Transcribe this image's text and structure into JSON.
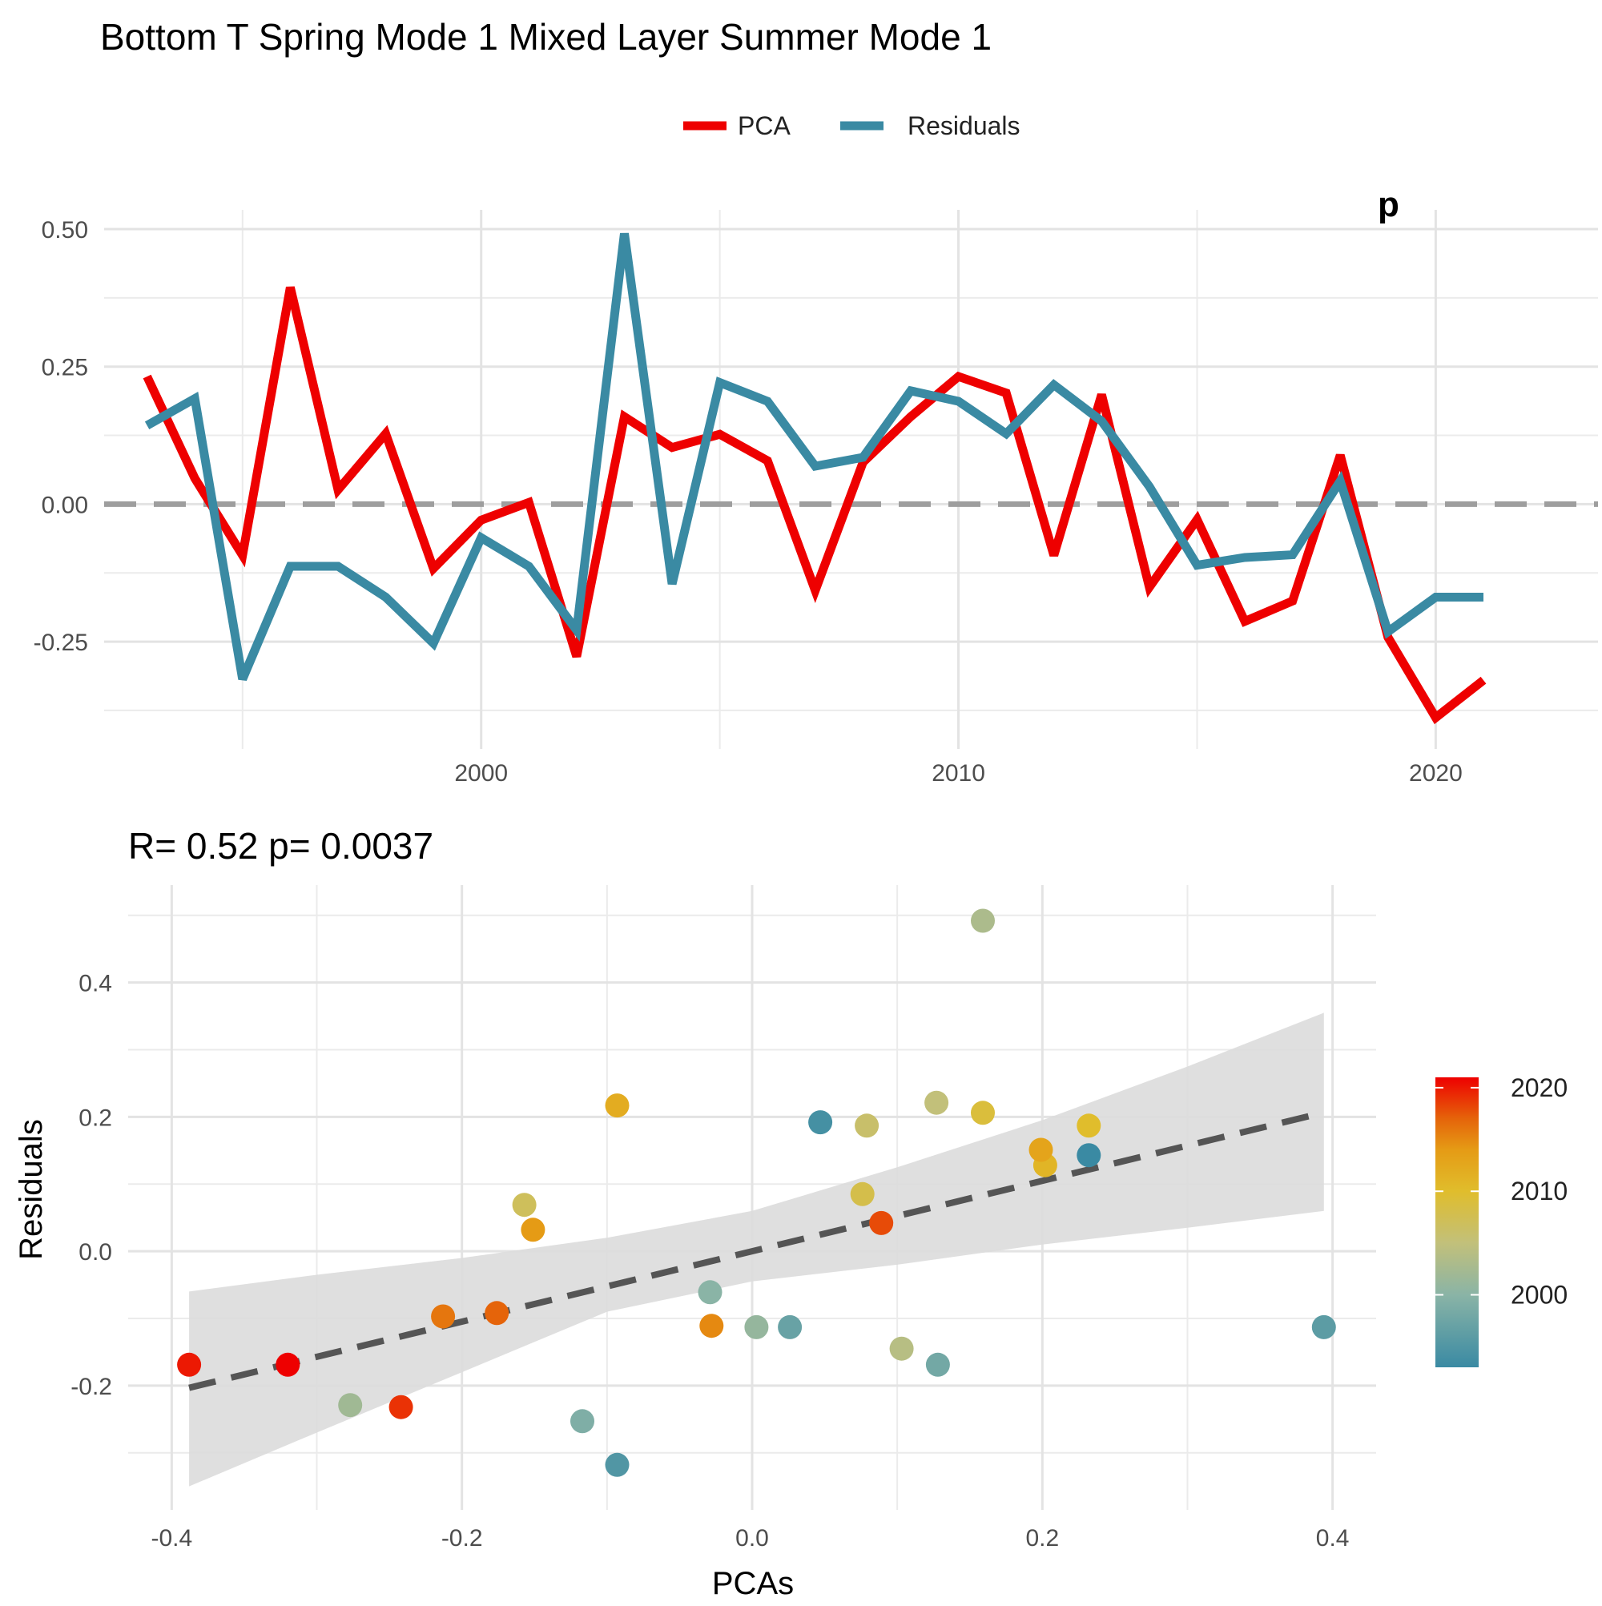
{
  "title": "Bottom T Spring Mode 1 Mixed Layer Summer Mode 1",
  "legend": {
    "placement": "top-center",
    "entries": [
      {
        "name": "PCA",
        "color": "#EE0000"
      },
      {
        "name": "Residuals",
        "color": "#3A8AA3"
      }
    ]
  },
  "chart_data": [
    {
      "type": "line",
      "title": "",
      "xlabel": "",
      "ylabel": "",
      "corner_label": "p",
      "xlim": [
        1992.1,
        2023.4
      ],
      "ylim": [
        -0.445,
        0.535
      ],
      "x_ticks": [
        2000,
        2010,
        2020
      ],
      "y_ticks": [
        0.5,
        0.25,
        0.0,
        -0.25
      ],
      "y_tick_labels": [
        "0.50",
        "0.25",
        "0.00",
        "-0.25"
      ],
      "grid": true,
      "reference_line": 0,
      "x": [
        1993,
        1994,
        1995,
        1996,
        1997,
        1998,
        1999,
        2000,
        2001,
        2002,
        2003,
        2004,
        2005,
        2006,
        2007,
        2008,
        2009,
        2010,
        2011,
        2012,
        2013,
        2014,
        2015,
        2016,
        2017,
        2018,
        2019,
        2020,
        2021
      ],
      "series": [
        {
          "name": "PCA",
          "color": "#EE0000",
          "values": [
            0.232,
            0.047,
            -0.093,
            0.394,
            0.026,
            0.128,
            -0.117,
            -0.029,
            0.003,
            -0.277,
            0.159,
            0.103,
            0.127,
            0.079,
            -0.157,
            0.076,
            0.159,
            0.232,
            0.202,
            -0.093,
            0.199,
            -0.151,
            -0.028,
            -0.213,
            -0.176,
            0.089,
            -0.242,
            -0.388,
            -0.32
          ]
        },
        {
          "name": "Residuals",
          "color": "#3A8AA3",
          "values": [
            0.143,
            0.192,
            -0.318,
            -0.113,
            -0.113,
            -0.169,
            -0.253,
            -0.061,
            -0.113,
            -0.229,
            0.492,
            -0.145,
            0.221,
            0.187,
            0.069,
            0.085,
            0.206,
            0.187,
            0.128,
            0.217,
            0.151,
            0.032,
            -0.111,
            -0.097,
            -0.092,
            0.042,
            -0.232,
            -0.169,
            -0.169
          ]
        }
      ]
    },
    {
      "type": "scatter",
      "title": "R= 0.52  p= 0.0037",
      "xlabel": "PCAs",
      "ylabel": "Residuals",
      "xlim": [
        -0.43,
        0.43
      ],
      "ylim": [
        -0.385,
        0.545
      ],
      "x_ticks": [
        -0.4,
        -0.2,
        0.0,
        0.2,
        0.4
      ],
      "x_tick_labels": [
        "-0.4",
        "-0.2",
        "0.0",
        "0.2",
        "0.4"
      ],
      "y_ticks": [
        0.4,
        0.2,
        0.0,
        -0.2
      ],
      "y_tick_labels": [
        "0.4",
        "0.2",
        "0.0",
        "-0.2"
      ],
      "grid": true,
      "fit": {
        "intercept": 0.0,
        "slope": 0.524,
        "x_range": [
          -0.388,
          0.394
        ],
        "style": "dashed",
        "color": "#555555"
      },
      "confidence_band": {
        "x": [
          -0.388,
          -0.3,
          -0.2,
          -0.1,
          0.0,
          0.1,
          0.2,
          0.3,
          0.394
        ],
        "lower": [
          -0.35,
          -0.27,
          -0.18,
          -0.09,
          -0.045,
          -0.02,
          0.01,
          0.035,
          0.06
        ],
        "upper": [
          -0.06,
          -0.035,
          -0.01,
          0.02,
          0.06,
          0.125,
          0.195,
          0.275,
          0.355
        ],
        "color": "#DCDCDC"
      },
      "color_scale": {
        "variable": "year",
        "range": [
          1993,
          2021
        ],
        "ticks": [
          2000,
          2010,
          2020
        ],
        "stops": [
          {
            "year": 1993,
            "color": "#3A8AA3"
          },
          {
            "year": 2000,
            "color": "#8AB4A6"
          },
          {
            "year": 2005,
            "color": "#C2C07A"
          },
          {
            "year": 2010,
            "color": "#E0BD2C"
          },
          {
            "year": 2014,
            "color": "#E59B15"
          },
          {
            "year": 2017,
            "color": "#E5640A"
          },
          {
            "year": 2021,
            "color": "#EE0000"
          }
        ],
        "placement": "right"
      },
      "points": [
        {
          "x": 0.232,
          "y": 0.143,
          "year": 1993
        },
        {
          "x": 0.047,
          "y": 0.192,
          "year": 1994
        },
        {
          "x": -0.093,
          "y": -0.318,
          "year": 1995
        },
        {
          "x": 0.394,
          "y": -0.113,
          "year": 1996
        },
        {
          "x": 0.026,
          "y": -0.113,
          "year": 1997
        },
        {
          "x": 0.128,
          "y": -0.169,
          "year": 1998
        },
        {
          "x": -0.117,
          "y": -0.253,
          "year": 1999
        },
        {
          "x": -0.029,
          "y": -0.061,
          "year": 2000
        },
        {
          "x": 0.003,
          "y": -0.113,
          "year": 2001
        },
        {
          "x": -0.277,
          "y": -0.229,
          "year": 2002
        },
        {
          "x": 0.159,
          "y": 0.492,
          "year": 2003
        },
        {
          "x": 0.103,
          "y": -0.145,
          "year": 2004
        },
        {
          "x": 0.127,
          "y": 0.221,
          "year": 2005
        },
        {
          "x": 0.079,
          "y": 0.187,
          "year": 2006
        },
        {
          "x": -0.157,
          "y": 0.069,
          "year": 2007
        },
        {
          "x": 0.076,
          "y": 0.085,
          "year": 2008
        },
        {
          "x": 0.159,
          "y": 0.206,
          "year": 2009
        },
        {
          "x": 0.232,
          "y": 0.187,
          "year": 2010
        },
        {
          "x": 0.202,
          "y": 0.128,
          "year": 2011
        },
        {
          "x": -0.093,
          "y": 0.217,
          "year": 2012
        },
        {
          "x": 0.199,
          "y": 0.151,
          "year": 2013
        },
        {
          "x": -0.151,
          "y": 0.032,
          "year": 2014
        },
        {
          "x": -0.028,
          "y": -0.111,
          "year": 2015
        },
        {
          "x": -0.213,
          "y": -0.097,
          "year": 2016
        },
        {
          "x": -0.176,
          "y": -0.092,
          "year": 2017
        },
        {
          "x": 0.089,
          "y": 0.042,
          "year": 2018
        },
        {
          "x": -0.242,
          "y": -0.232,
          "year": 2019
        },
        {
          "x": -0.388,
          "y": -0.169,
          "year": 2020
        },
        {
          "x": -0.32,
          "y": -0.169,
          "year": 2021
        }
      ]
    }
  ]
}
